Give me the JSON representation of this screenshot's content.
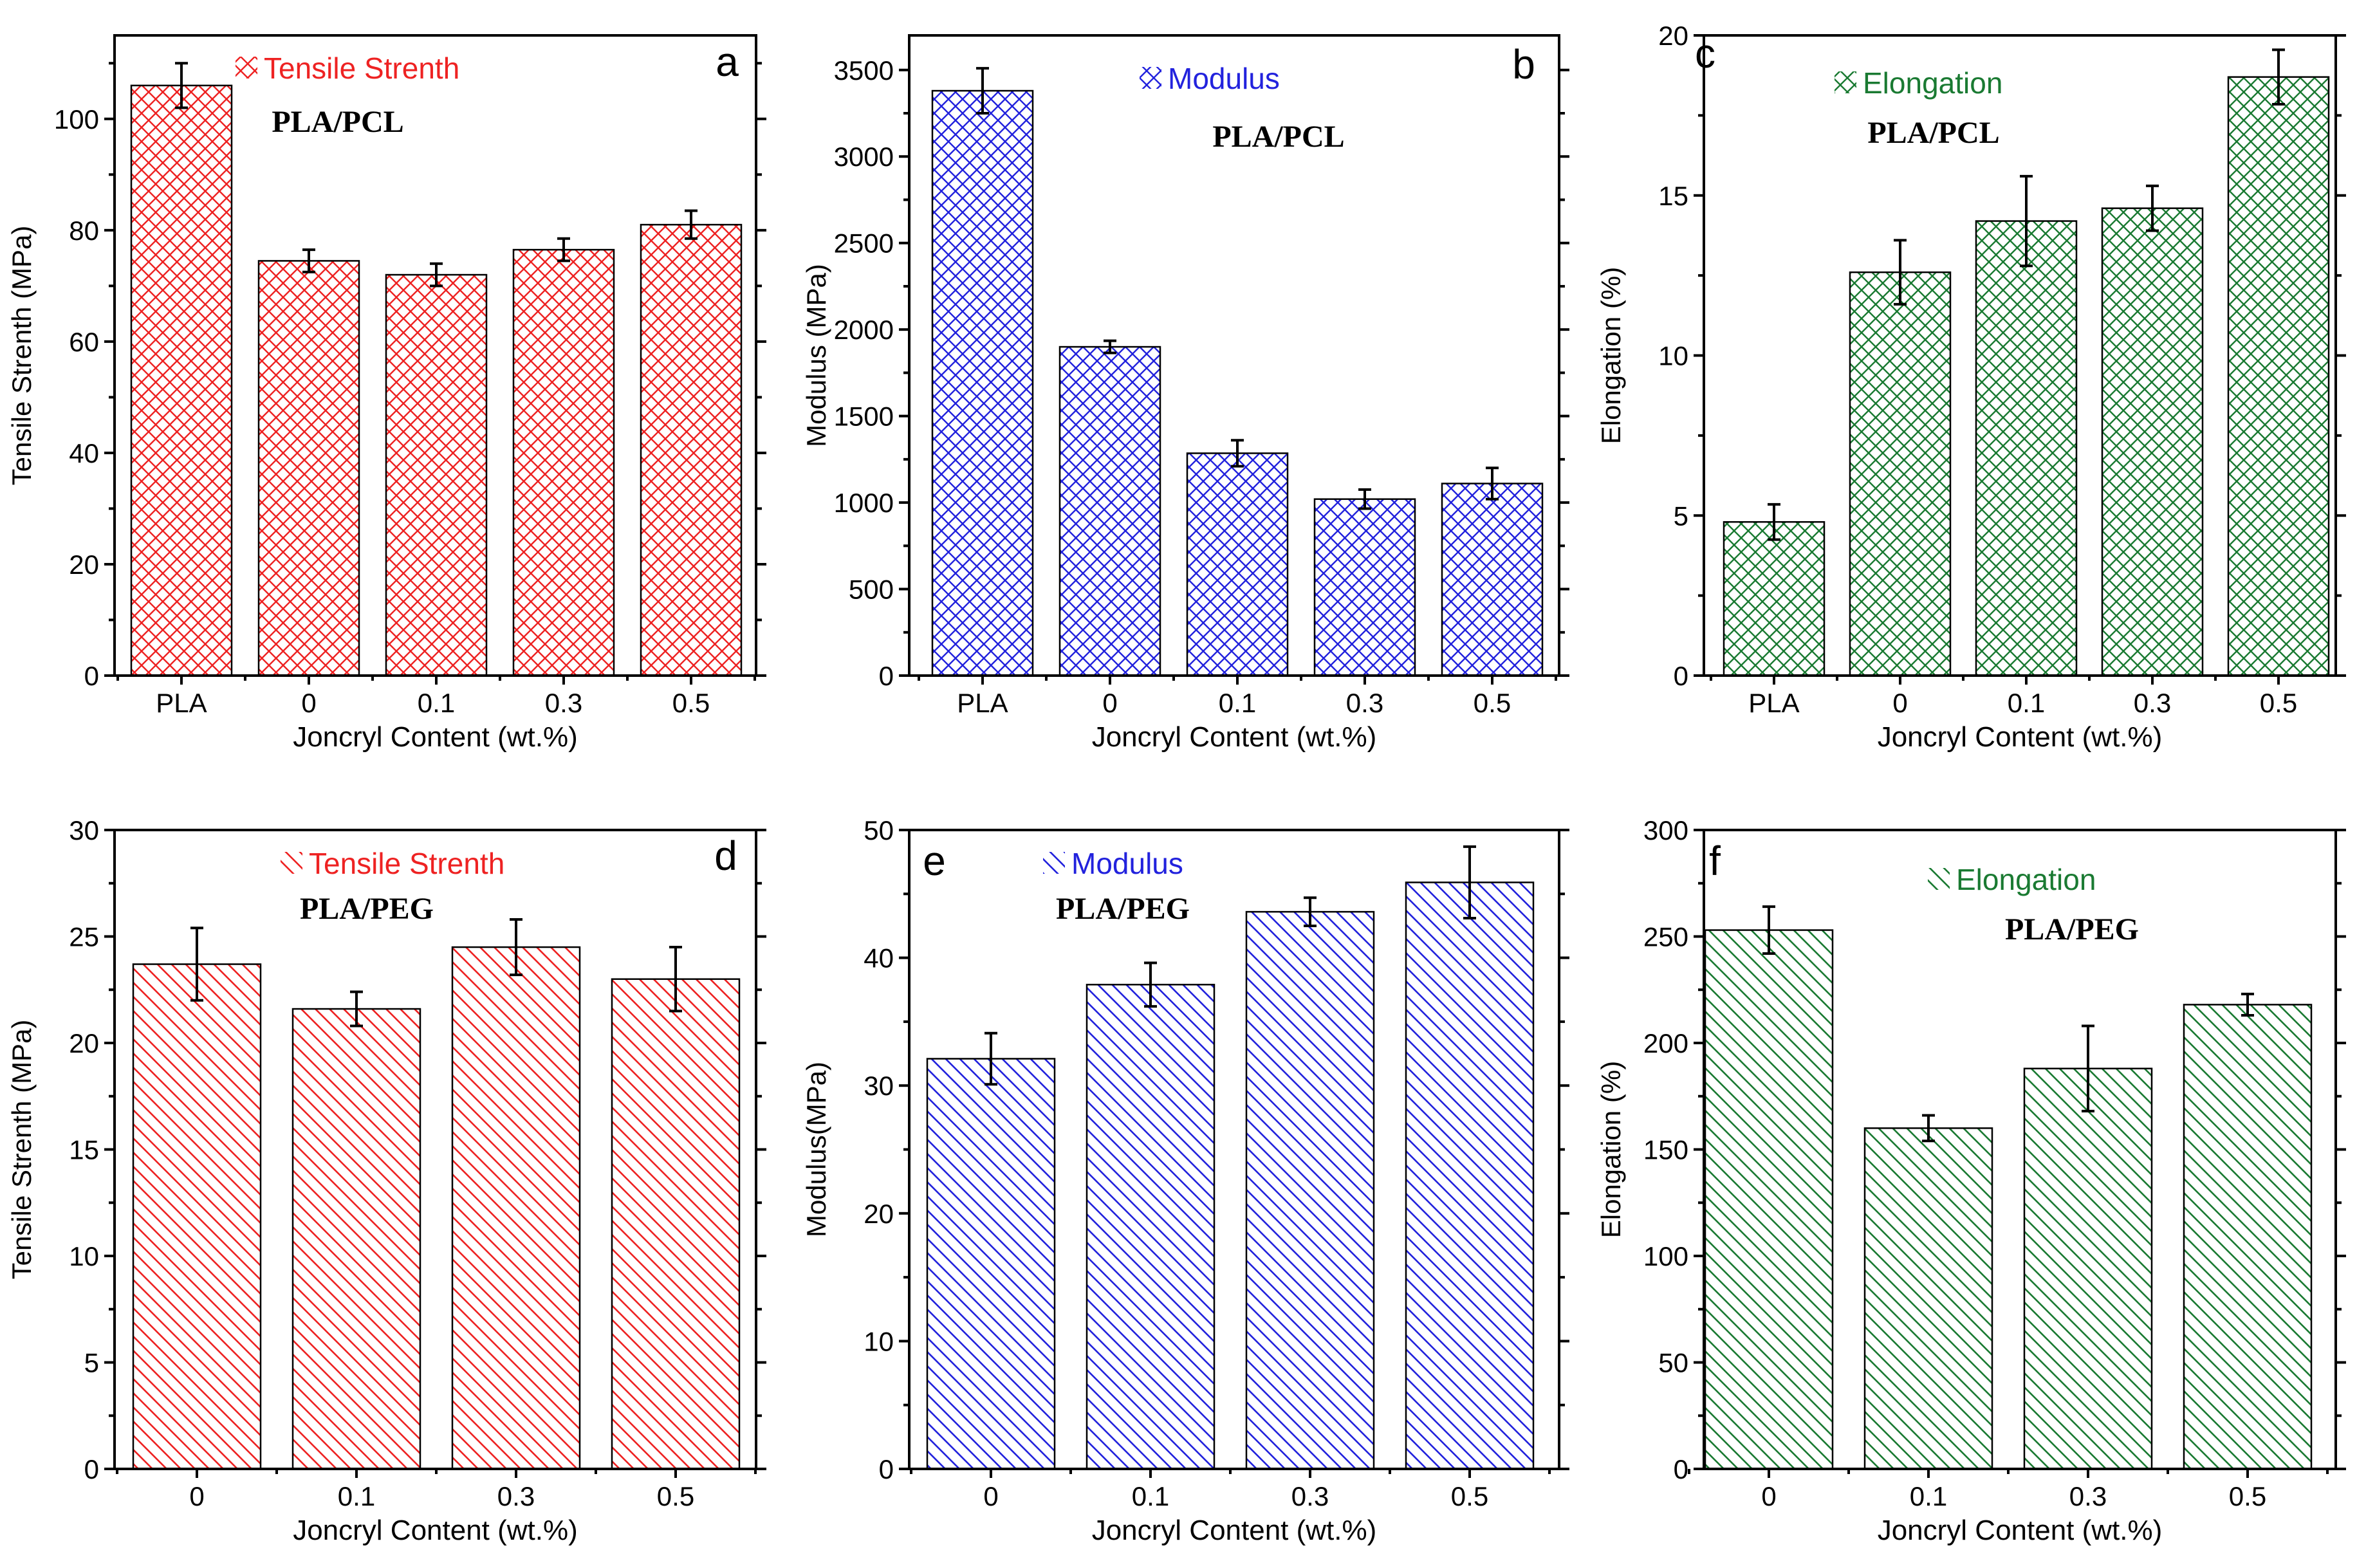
{
  "colors": {
    "red": "#ee2222",
    "blue": "#2222dd",
    "green": "#1a7a32",
    "black": "#000000"
  },
  "chart_data": [
    {
      "id": "a",
      "panel_label": "a",
      "type": "bar",
      "pattern": "crosshatch",
      "color": "#ee2222",
      "categories": [
        "PLA",
        "0",
        "0.1",
        "0.3",
        "0.5"
      ],
      "values": [
        106,
        74.5,
        72,
        76.5,
        81
      ],
      "errors": [
        4,
        2,
        2,
        2,
        2.5
      ],
      "ylim": [
        0,
        115
      ],
      "yticks": [
        0,
        20,
        40,
        60,
        80,
        100
      ],
      "ylabel": "Tensile Strenth (MPa)",
      "xlabel": "Joncryl Content (wt.%)",
      "legend": "Tensile Strenth",
      "annotation": "PLA/PCL"
    },
    {
      "id": "b",
      "panel_label": "b",
      "type": "bar",
      "pattern": "crosshatch",
      "color": "#2222dd",
      "categories": [
        "PLA",
        "0",
        "0.1",
        "0.3",
        "0.5"
      ],
      "values": [
        3380,
        1900,
        1285,
        1020,
        1110
      ],
      "errors": [
        130,
        35,
        75,
        55,
        90
      ],
      "ylim": [
        0,
        3700
      ],
      "yticks": [
        0,
        500,
        1000,
        1500,
        2000,
        2500,
        3000,
        3500
      ],
      "ylabel": "Modulus (MPa)",
      "xlabel": "Joncryl Content (wt.%)",
      "legend": "Modulus",
      "annotation": "PLA/PCL"
    },
    {
      "id": "c",
      "panel_label": "c",
      "type": "bar",
      "pattern": "crosshatch",
      "color": "#1a7a32",
      "categories": [
        "PLA",
        "0",
        "0.1",
        "0.3",
        "0.5"
      ],
      "values": [
        4.8,
        12.6,
        14.2,
        14.6,
        18.7
      ],
      "errors": [
        0.55,
        1.0,
        1.4,
        0.7,
        0.85
      ],
      "ylim": [
        0,
        20
      ],
      "yticks": [
        0,
        5,
        10,
        15,
        20
      ],
      "ylabel": "Elongation (%)",
      "xlabel": "Joncryl Content (wt.%)",
      "legend": "Elongation",
      "annotation": "PLA/PCL"
    },
    {
      "id": "d",
      "panel_label": "d",
      "type": "bar",
      "pattern": "diagonal",
      "color": "#ee2222",
      "categories": [
        "0",
        "0.1",
        "0.3",
        "0.5"
      ],
      "values": [
        23.7,
        21.6,
        24.5,
        23.0
      ],
      "errors": [
        1.7,
        0.8,
        1.3,
        1.5
      ],
      "ylim": [
        0,
        30
      ],
      "yticks": [
        0,
        5,
        10,
        15,
        20,
        25,
        30
      ],
      "ylabel": "Tensile Strenth (MPa)",
      "xlabel": "Joncryl Content (wt.%)",
      "legend": "Tensile Strenth",
      "annotation": "PLA/PEG"
    },
    {
      "id": "e",
      "panel_label": "e",
      "type": "bar",
      "pattern": "diagonal",
      "color": "#2222dd",
      "categories": [
        "0",
        "0.1",
        "0.3",
        "0.5"
      ],
      "values": [
        32.1,
        37.9,
        43.6,
        45.9
      ],
      "errors": [
        2.0,
        1.7,
        1.1,
        2.8
      ],
      "ylim": [
        0,
        50
      ],
      "yticks": [
        0,
        10,
        20,
        30,
        40,
        50
      ],
      "ylabel": "Modulus(MPa)",
      "xlabel": "Joncryl Content (wt.%)",
      "legend": "Modulus",
      "annotation": "PLA/PEG"
    },
    {
      "id": "f",
      "panel_label": "f",
      "type": "bar",
      "pattern": "diagonal",
      "color": "#1a7a32",
      "categories": [
        "0",
        "0.1",
        "0.3",
        "0.5"
      ],
      "values": [
        253,
        160,
        188,
        218
      ],
      "errors": [
        11,
        6,
        20,
        5
      ],
      "ylim": [
        0,
        300
      ],
      "yticks": [
        0,
        50,
        100,
        150,
        200,
        250,
        300
      ],
      "ylabel": "Elongation (%)",
      "xlabel": "Joncryl Content (wt.%)",
      "legend": "Elongation",
      "annotation": "PLA/PEG"
    }
  ]
}
